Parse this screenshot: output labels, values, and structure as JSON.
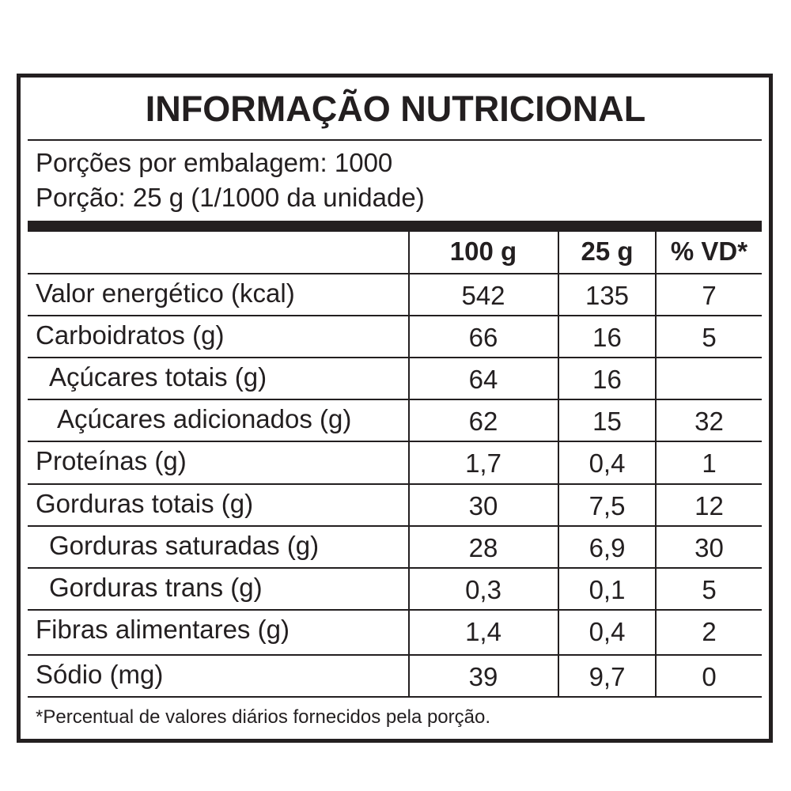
{
  "title": "INFORMAÇÃO NUTRICIONAL",
  "servings_per_package": "Porções por embalagem: 1000",
  "serving_size": "Porção: 25 g (1/1000 da unidade)",
  "columns": [
    "",
    "100 g",
    "25 g",
    "% VD*"
  ],
  "rows": [
    {
      "name": "Valor energético (kcal)",
      "per100": "542",
      "perServing": "135",
      "vd": "7",
      "indent": 0
    },
    {
      "name": "Carboidratos (g)",
      "per100": "66",
      "perServing": "16",
      "vd": "5",
      "indent": 0
    },
    {
      "name": "Açúcares totais (g)",
      "per100": "64",
      "perServing": "16",
      "vd": "",
      "indent": 1
    },
    {
      "name": "Açúcares adicionados (g)",
      "per100": "62",
      "perServing": "15",
      "vd": "32",
      "indent": 2
    },
    {
      "name": "Proteínas (g)",
      "per100": "1,7",
      "perServing": "0,4",
      "vd": "1",
      "indent": 0
    },
    {
      "name": "Gorduras totais (g)",
      "per100": "30",
      "perServing": "7,5",
      "vd": "12",
      "indent": 0
    },
    {
      "name": "Gorduras saturadas (g)",
      "per100": "28",
      "perServing": "6,9",
      "vd": "30",
      "indent": 1
    },
    {
      "name": "Gorduras trans (g)",
      "per100": "0,3",
      "perServing": "0,1",
      "vd": "5",
      "indent": 1
    },
    {
      "name": "Fibras alimentares (g)",
      "per100": "1,4",
      "perServing": "0,4",
      "vd": "2",
      "indent": 0
    },
    {
      "name": "Sódio (mg)",
      "per100": "39",
      "perServing": "9,7",
      "vd": "0",
      "indent": 0
    }
  ],
  "footnote": "*Percentual de valores diários fornecidos pela porção."
}
